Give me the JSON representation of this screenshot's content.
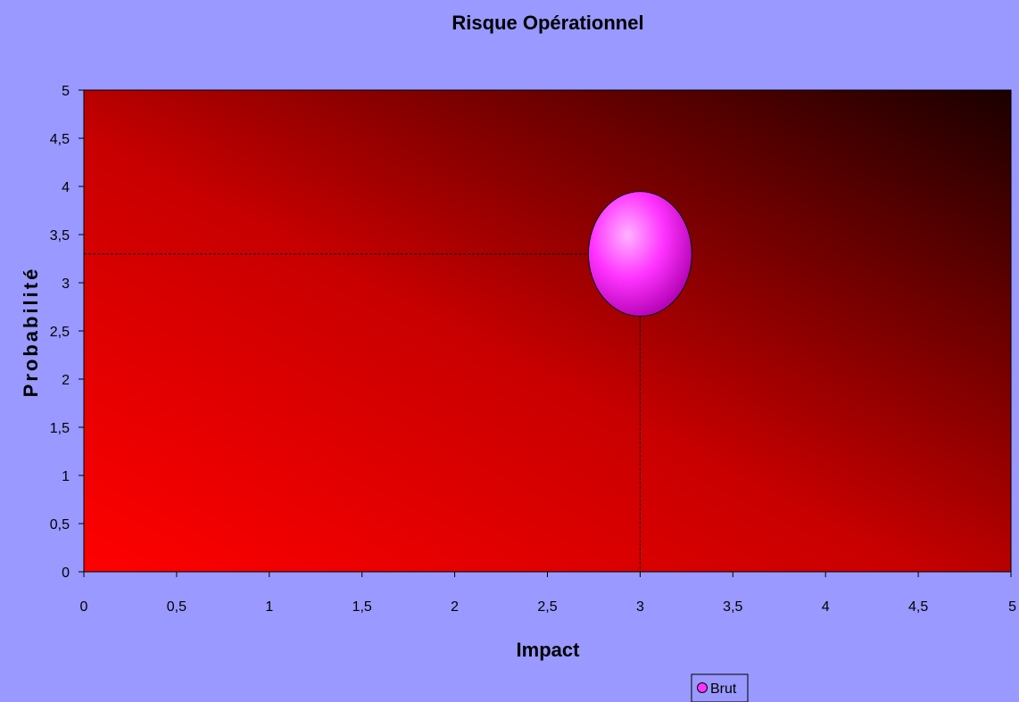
{
  "chart_data": {
    "type": "scatter",
    "title": "Risque Opérationnel",
    "xlabel": "Impact",
    "ylabel": "Probabilité",
    "xlim": [
      0,
      5
    ],
    "ylim": [
      0,
      5
    ],
    "x_ticks": [
      "0",
      "0,5",
      "1",
      "1,5",
      "2",
      "2,5",
      "3",
      "3,5",
      "4",
      "4,5",
      "5"
    ],
    "y_ticks": [
      "0",
      "0,5",
      "1",
      "1,5",
      "2",
      "2,5",
      "3",
      "3,5",
      "4",
      "4,5",
      "5"
    ],
    "grid": false,
    "legend_position": "bottom",
    "series": [
      {
        "name": "Brut",
        "color": "#ff33ff",
        "points": [
          {
            "x": 3,
            "y": 3.3
          }
        ],
        "drop_lines": true
      }
    ],
    "background": {
      "gradient_from": "#ff0000",
      "gradient_to": "#1a0000"
    }
  }
}
